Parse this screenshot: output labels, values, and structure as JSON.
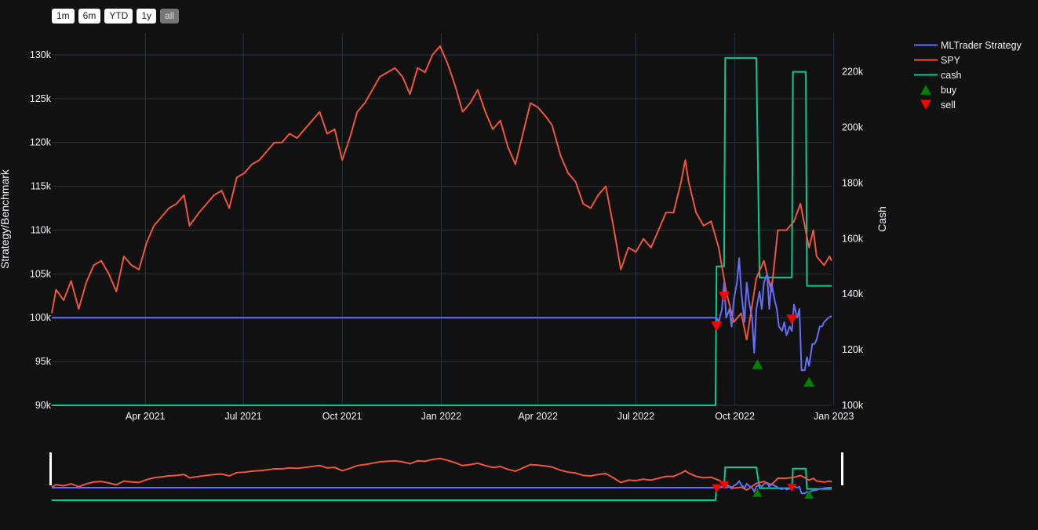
{
  "range_selector": {
    "buttons": [
      "1m",
      "6m",
      "YTD",
      "1y",
      "all"
    ],
    "active": "all"
  },
  "chart_data": {
    "type": "line",
    "xlim": [
      "2021-01-04",
      "2022-12-30"
    ],
    "ylim": [
      90000,
      132500
    ],
    "y2lim": [
      100000,
      234000
    ],
    "grid": true,
    "legend_position": "top-right outside",
    "ylabel": "Strategy/Benchmark",
    "y2label": "Cash",
    "x_ticks": [
      "Apr 2021",
      "Jul 2021",
      "Oct 2021",
      "Jan 2022",
      "Apr 2022",
      "Jul 2022",
      "Oct 2022",
      "Jan 2023"
    ],
    "x_tick_dates": [
      "2021-04-01",
      "2021-07-01",
      "2021-10-01",
      "2022-01-01",
      "2022-04-01",
      "2022-07-01",
      "2022-10-01",
      "2023-01-01"
    ],
    "y_ticks": [
      90000,
      95000,
      100000,
      105000,
      110000,
      115000,
      120000,
      125000,
      130000
    ],
    "y_tick_labels": [
      "90k",
      "95k",
      "100k",
      "105k",
      "110k",
      "115k",
      "120k",
      "125k",
      "130k"
    ],
    "y2_ticks": [
      100000,
      120000,
      140000,
      160000,
      180000,
      200000,
      220000
    ],
    "y2_tick_labels": [
      "100k",
      "120k",
      "140k",
      "160k",
      "180k",
      "200k",
      "220k"
    ],
    "series": [
      {
        "name": "MLTrader Strategy",
        "color": "#636efa",
        "axis": "y",
        "x": [
          "2021-01-04",
          "2022-09-14",
          "2022-09-16",
          "2022-09-19",
          "2022-09-21",
          "2022-09-23",
          "2022-09-26",
          "2022-09-28",
          "2022-09-30",
          "2022-10-03",
          "2022-10-05",
          "2022-10-07",
          "2022-10-10",
          "2022-10-12",
          "2022-10-14",
          "2022-10-17",
          "2022-10-19",
          "2022-10-21",
          "2022-10-24",
          "2022-10-26",
          "2022-10-28",
          "2022-10-31",
          "2022-11-02",
          "2022-11-04",
          "2022-11-07",
          "2022-11-09",
          "2022-11-11",
          "2022-11-14",
          "2022-11-16",
          "2022-11-18",
          "2022-11-21",
          "2022-11-23",
          "2022-11-25",
          "2022-11-28",
          "2022-11-30",
          "2022-12-02",
          "2022-12-05",
          "2022-12-07",
          "2022-12-09",
          "2022-12-12",
          "2022-12-14",
          "2022-12-16",
          "2022-12-19",
          "2022-12-21",
          "2022-12-23",
          "2022-12-27",
          "2022-12-30"
        ],
        "y": [
          100000,
          100000,
          99500,
          101000,
          104000,
          100000,
          101000,
          99000,
          102000,
          104000,
          106800,
          103000,
          99500,
          104000,
          102000,
          100000,
          96000,
          101000,
          103000,
          101000,
          104000,
          105000,
          101000,
          104000,
          102000,
          101000,
          99000,
          98500,
          99500,
          98000,
          99000,
          98500,
          101500,
          100000,
          101000,
          94000,
          94000,
          95500,
          94500,
          97000,
          97000,
          97500,
          99000,
          99000,
          99500,
          100000,
          100200
        ]
      },
      {
        "name": "SPY",
        "color": "#ef553b",
        "axis": "y",
        "x": [
          "2021-01-04",
          "2021-01-08",
          "2021-01-15",
          "2021-01-22",
          "2021-01-29",
          "2021-02-05",
          "2021-02-12",
          "2021-02-19",
          "2021-02-26",
          "2021-03-05",
          "2021-03-12",
          "2021-03-19",
          "2021-03-26",
          "2021-04-02",
          "2021-04-09",
          "2021-04-16",
          "2021-04-23",
          "2021-04-30",
          "2021-05-07",
          "2021-05-12",
          "2021-05-21",
          "2021-05-28",
          "2021-06-04",
          "2021-06-11",
          "2021-06-18",
          "2021-06-25",
          "2021-07-02",
          "2021-07-09",
          "2021-07-16",
          "2021-07-23",
          "2021-07-30",
          "2021-08-06",
          "2021-08-13",
          "2021-08-20",
          "2021-08-27",
          "2021-09-03",
          "2021-09-10",
          "2021-09-17",
          "2021-09-24",
          "2021-10-01",
          "2021-10-08",
          "2021-10-15",
          "2021-10-22",
          "2021-10-29",
          "2021-11-05",
          "2021-11-12",
          "2021-11-19",
          "2021-11-26",
          "2021-12-03",
          "2021-12-10",
          "2021-12-17",
          "2021-12-24",
          "2021-12-31",
          "2022-01-07",
          "2022-01-14",
          "2022-01-21",
          "2022-01-28",
          "2022-02-04",
          "2022-02-11",
          "2022-02-18",
          "2022-02-25",
          "2022-03-04",
          "2022-03-11",
          "2022-03-18",
          "2022-03-25",
          "2022-04-01",
          "2022-04-08",
          "2022-04-14",
          "2022-04-22",
          "2022-04-29",
          "2022-05-06",
          "2022-05-13",
          "2022-05-20",
          "2022-05-27",
          "2022-06-03",
          "2022-06-10",
          "2022-06-17",
          "2022-06-24",
          "2022-07-01",
          "2022-07-08",
          "2022-07-15",
          "2022-07-22",
          "2022-07-29",
          "2022-08-05",
          "2022-08-12",
          "2022-08-16",
          "2022-08-19",
          "2022-08-26",
          "2022-09-02",
          "2022-09-09",
          "2022-09-16",
          "2022-09-23",
          "2022-09-30",
          "2022-10-07",
          "2022-10-12",
          "2022-10-14",
          "2022-10-21",
          "2022-10-28",
          "2022-11-04",
          "2022-11-10",
          "2022-11-18",
          "2022-11-25",
          "2022-12-01",
          "2022-12-09",
          "2022-12-13",
          "2022-12-16",
          "2022-12-23",
          "2022-12-28",
          "2022-12-30"
        ],
        "y": [
          100500,
          103200,
          102000,
          104200,
          101000,
          104000,
          106000,
          106500,
          105000,
          103000,
          107000,
          106000,
          105500,
          108500,
          110500,
          111500,
          112500,
          113000,
          114000,
          110500,
          112000,
          113000,
          114000,
          114500,
          112500,
          116000,
          116500,
          117500,
          118000,
          119000,
          120000,
          120000,
          121000,
          120500,
          121500,
          122500,
          123500,
          121000,
          121500,
          118000,
          120500,
          123500,
          124500,
          126000,
          127500,
          128000,
          128500,
          127500,
          125500,
          128500,
          128000,
          130000,
          131000,
          129000,
          126500,
          123500,
          124500,
          126000,
          123500,
          121500,
          122500,
          119500,
          117500,
          121000,
          124500,
          124000,
          123000,
          122000,
          118500,
          116500,
          115500,
          113000,
          112500,
          114000,
          115000,
          110500,
          105500,
          108000,
          107500,
          109000,
          108000,
          110000,
          112000,
          112000,
          115500,
          118000,
          115500,
          112000,
          110500,
          111000,
          108000,
          103000,
          99500,
          100500,
          97500,
          99000,
          104500,
          106500,
          103000,
          110000,
          110000,
          111000,
          113000,
          108000,
          110000,
          107000,
          106000,
          107000,
          106500
        ]
      },
      {
        "name": "cash",
        "color": "#00cc96",
        "axis": "y2",
        "x": [
          "2021-01-04",
          "2022-09-13",
          "2022-09-14",
          "2022-09-21",
          "2022-09-22",
          "2022-10-21",
          "2022-10-24",
          "2022-11-23",
          "2022-11-24",
          "2022-12-06",
          "2022-12-07",
          "2022-12-30"
        ],
        "y": [
          100000,
          100000,
          150000,
          150000,
          225000,
          225000,
          146000,
          146000,
          220000,
          220000,
          143000,
          143000
        ]
      }
    ],
    "markers": [
      {
        "name": "buy",
        "color": "#008000",
        "symbol": "triangle-up",
        "x": [
          "2022-10-22",
          "2022-12-09"
        ],
        "y": [
          94700,
          92700
        ]
      },
      {
        "name": "sell",
        "color": "#ff0000",
        "symbol": "triangle-down",
        "x": [
          "2022-09-14",
          "2022-09-21",
          "2022-11-23"
        ],
        "y": [
          99000,
          102400,
          99800
        ]
      }
    ]
  }
}
